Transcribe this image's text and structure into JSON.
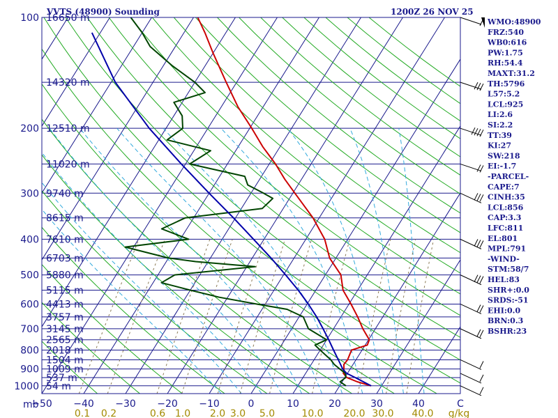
{
  "header": {
    "title": "VVTS (48900) Sounding",
    "time": "1200Z 26 NOV 25"
  },
  "chart_data": {
    "type": "line",
    "pressure_ticks": [
      "100",
      "200",
      "300",
      "400",
      "500",
      "600",
      "700",
      "800",
      "900",
      "1000"
    ],
    "pressure_label_unit": "mb",
    "temperature_ticks": [
      "-50",
      "-40",
      "-30",
      "-20",
      "-10",
      "0",
      "10",
      "20",
      "30",
      "40",
      "C"
    ],
    "mixing_ratio_ticks": [
      "0.1",
      "0.2",
      "0.6",
      "1.0",
      "2.0",
      "3.0",
      "5.0",
      "10.0",
      "20.0",
      "30.0",
      "40.0",
      "g/kg"
    ],
    "heights": [
      {
        "p": 100,
        "label": "16650 m"
      },
      {
        "p": 150,
        "label": "14320 m"
      },
      {
        "p": 200,
        "label": "12510 m"
      },
      {
        "p": 250,
        "label": "11020 m"
      },
      {
        "p": 300,
        "label": "9740 m"
      },
      {
        "p": 350,
        "label": "8615 m"
      },
      {
        "p": 400,
        "label": "7610 m"
      },
      {
        "p": 450,
        "label": "6703 m"
      },
      {
        "p": 500,
        "label": "5880 m"
      },
      {
        "p": 550,
        "label": "5115 m"
      },
      {
        "p": 600,
        "label": "4413 m"
      },
      {
        "p": 650,
        "label": "3757 m"
      },
      {
        "p": 700,
        "label": "3145 m"
      },
      {
        "p": 750,
        "label": "2565 m"
      },
      {
        "p": 800,
        "label": "2018 m"
      },
      {
        "p": 850,
        "label": "1504 m"
      },
      {
        "p": 900,
        "label": "1009 m"
      },
      {
        "p": 950,
        "label": "537 m"
      },
      {
        "p": 1000,
        "label": "54 m"
      }
    ],
    "temperature_profile": [
      [
        1000,
        27.5
      ],
      [
        975,
        23.6
      ],
      [
        950,
        20.5
      ],
      [
        925,
        19.0
      ],
      [
        900,
        18.5
      ],
      [
        875,
        17.8
      ],
      [
        850,
        18.0
      ],
      [
        800,
        17.5
      ],
      [
        775,
        20.5
      ],
      [
        750,
        20.2
      ],
      [
        700,
        17.0
      ],
      [
        650,
        14.0
      ],
      [
        600,
        10.5
      ],
      [
        550,
        6.5
      ],
      [
        500,
        3.7
      ],
      [
        450,
        -1.5
      ],
      [
        400,
        -5.5
      ],
      [
        350,
        -11.5
      ],
      [
        300,
        -19.5
      ],
      [
        275,
        -24.0
      ],
      [
        250,
        -28.5
      ],
      [
        225,
        -34.0
      ],
      [
        200,
        -39.5
      ],
      [
        175,
        -46.0
      ],
      [
        150,
        -52.5
      ],
      [
        125,
        -60.0
      ],
      [
        110,
        -65.0
      ],
      [
        100,
        -69.0
      ]
    ],
    "dewpoint_profile": [
      [
        1000,
        21.5
      ],
      [
        975,
        19.5
      ],
      [
        950,
        20.2
      ],
      [
        925,
        19.5
      ],
      [
        900,
        17.5
      ],
      [
        875,
        15.5
      ],
      [
        850,
        14.0
      ],
      [
        800,
        10.0
      ],
      [
        775,
        8.0
      ],
      [
        750,
        10.0
      ],
      [
        700,
        4.0
      ],
      [
        650,
        1.0
      ],
      [
        620,
        -4.0
      ],
      [
        600,
        -12.0
      ],
      [
        575,
        -22.0
      ],
      [
        550,
        -30.0
      ],
      [
        525,
        -38.0
      ],
      [
        500,
        -36.0
      ],
      [
        475,
        -18.0
      ],
      [
        460,
        -33.0
      ],
      [
        450,
        -40.0
      ],
      [
        420,
        -52.0
      ],
      [
        400,
        -38.0
      ],
      [
        375,
        -46.0
      ],
      [
        350,
        -42.0
      ],
      [
        330,
        -25.0
      ],
      [
        310,
        -24.0
      ],
      [
        300,
        -27.0
      ],
      [
        285,
        -32.0
      ],
      [
        270,
        -34.0
      ],
      [
        250,
        -49.0
      ],
      [
        230,
        -46.0
      ],
      [
        215,
        -58.0
      ],
      [
        200,
        -56.0
      ],
      [
        185,
        -58.0
      ],
      [
        170,
        -62.0
      ],
      [
        160,
        -56.0
      ],
      [
        150,
        -60.0
      ],
      [
        135,
        -68.0
      ],
      [
        120,
        -76.0
      ],
      [
        110,
        -80.0
      ],
      [
        100,
        -85.0
      ]
    ],
    "parcel_profile": [
      [
        1000,
        27.5
      ],
      [
        950,
        22.5
      ],
      [
        925,
        19.8
      ],
      [
        900,
        18.2
      ],
      [
        850,
        15.8
      ],
      [
        800,
        13.2
      ],
      [
        750,
        10.5
      ],
      [
        700,
        7.5
      ],
      [
        650,
        4.2
      ],
      [
        600,
        0.3
      ],
      [
        550,
        -4.2
      ],
      [
        500,
        -9.5
      ],
      [
        450,
        -15.5
      ],
      [
        400,
        -22.5
      ],
      [
        350,
        -30.5
      ],
      [
        300,
        -40.0
      ],
      [
        250,
        -51.0
      ],
      [
        200,
        -64.0
      ],
      [
        150,
        -79.0
      ],
      [
        110,
        -92.0
      ]
    ],
    "wind_barbs": [
      {
        "p": 1000,
        "dir": 270,
        "spd": 5
      },
      {
        "p": 925,
        "dir": 330,
        "spd": 10
      },
      {
        "p": 850,
        "dir": 340,
        "spd": 10
      },
      {
        "p": 700,
        "dir": 20,
        "spd": 15
      },
      {
        "p": 600,
        "dir": 30,
        "spd": 20
      },
      {
        "p": 500,
        "dir": 50,
        "spd": 25
      },
      {
        "p": 400,
        "dir": 70,
        "spd": 30
      },
      {
        "p": 300,
        "dir": 80,
        "spd": 25
      },
      {
        "p": 250,
        "dir": 70,
        "spd": 20
      },
      {
        "p": 200,
        "dir": 60,
        "spd": 35
      },
      {
        "p": 150,
        "dir": 50,
        "spd": 25
      },
      {
        "p": 100,
        "dir": 90,
        "spd": 10
      }
    ]
  },
  "indices": [
    "WMO:48900",
    "FRZ:540",
    "WB0:616",
    "PW:1.75",
    "RH:54.4",
    "MAXT:31.2",
    "TH:5796",
    "L57:5.2",
    "LCL:925",
    "LI:2.6",
    "SI:2.2",
    "TT:39",
    "KI:27",
    "SW:218",
    "EI:-1.7",
    "-PARCEL-",
    "CAPE:7",
    "CINH:35",
    "LCL:856",
    "CAP:3.3",
    "LFC:811",
    "EL:801",
    "MPL:791",
    "-WIND-",
    "STM:58/7",
    "HEL:83",
    "SHR+:0.0",
    "SRDS:-51",
    "EHI:0.0",
    "BRN:0.3",
    "BSHR:23"
  ],
  "colors": {
    "frame": "#1a1a8c",
    "isobar": "#1a1a8c",
    "isotherm": "#1a1a8c",
    "dry_adiabat": "#22aa22",
    "moist_adiabat": "#33aadd",
    "mixing_ratio": "#8a7a55",
    "temperature": "#cc0000",
    "dewpoint": "#004400",
    "parcel": "#0000aa",
    "olive_label": "#a28a00"
  }
}
